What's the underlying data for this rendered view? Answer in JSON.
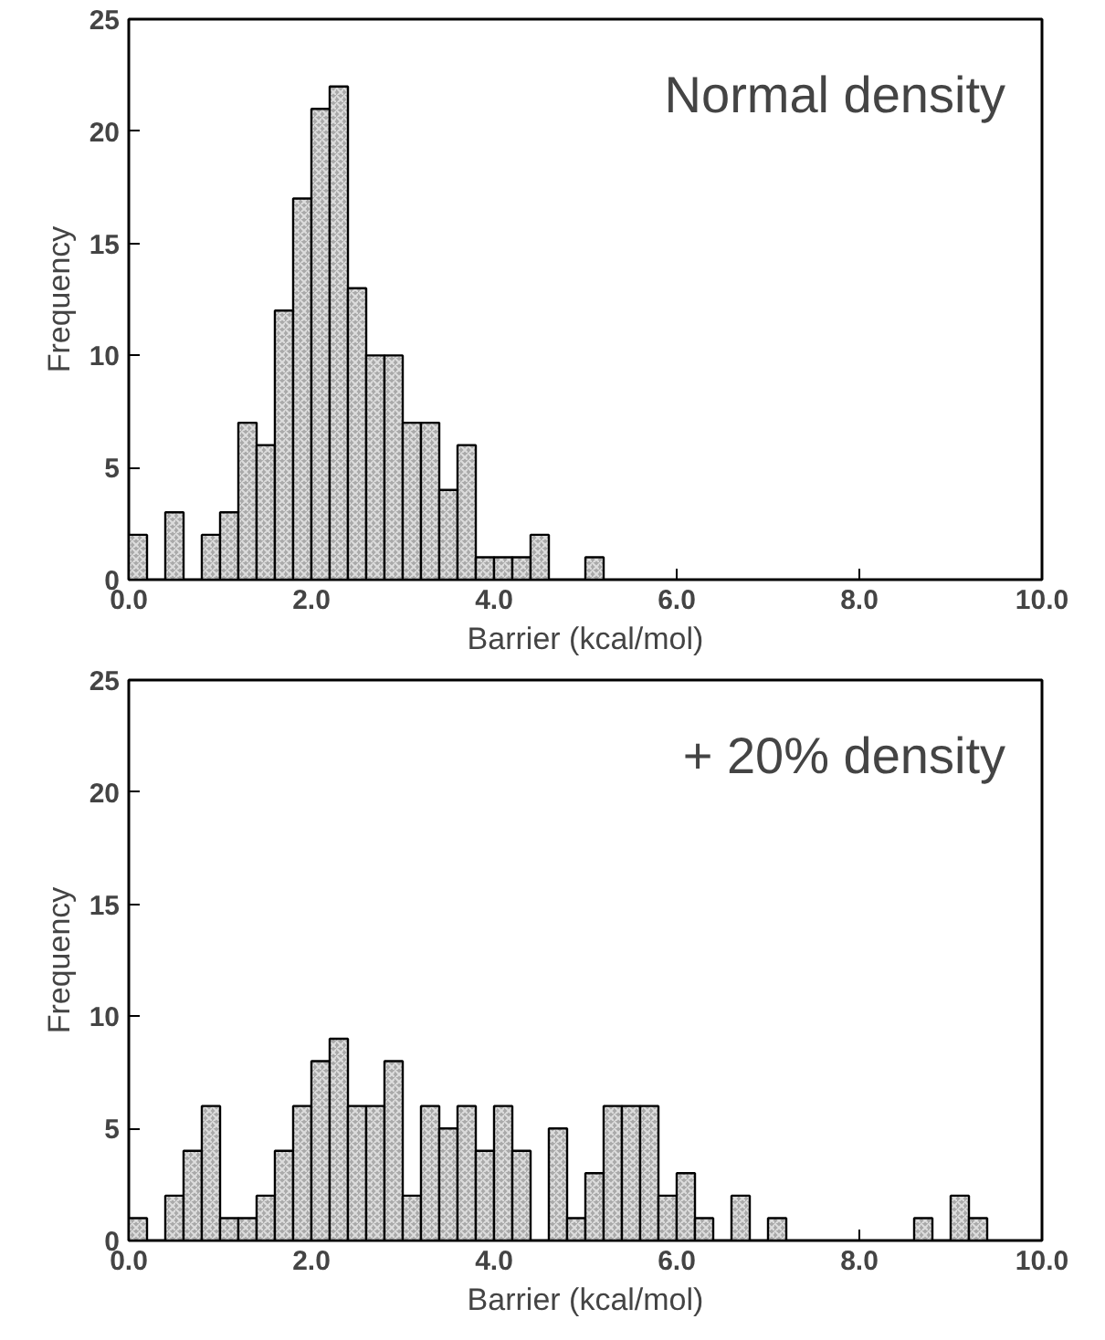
{
  "chart_data": [
    {
      "type": "histogram",
      "xlabel": "Barrier (kcal/mol)",
      "ylabel": "Frequency",
      "annotations": [
        "Normal density"
      ],
      "color": "#a9a9a9",
      "grid": false,
      "bins": [
        0,
        0.2,
        0.4,
        0.6,
        0.8,
        1.0,
        1.2,
        1.4,
        1.6,
        1.8,
        2.0,
        2.2,
        2.4,
        2.6,
        2.8,
        3.0,
        3.2,
        3.4,
        3.6,
        3.8,
        4.0,
        4.2,
        4.4,
        4.6,
        4.8,
        5.0,
        5.2,
        5.4,
        5.6,
        5.8,
        6.0,
        6.2,
        6.4,
        6.6,
        6.8,
        7.0,
        7.2,
        7.4,
        7.6,
        7.8,
        8.0,
        8.2,
        8.4,
        8.6,
        8.8,
        9.0,
        9.2,
        9.4,
        9.6,
        9.8,
        10.0
      ],
      "values": [
        2,
        0,
        3,
        0,
        2,
        3,
        7,
        6,
        12,
        17,
        21,
        22,
        13,
        10,
        10,
        7,
        7,
        4,
        6,
        1,
        1,
        1,
        2,
        0,
        0,
        1,
        0,
        0,
        0,
        0,
        0,
        0,
        0,
        0,
        0,
        0,
        0,
        0,
        0,
        0,
        0,
        0,
        0,
        0,
        0,
        0,
        0,
        0,
        0,
        0
      ],
      "xlim": [
        0,
        10
      ],
      "xticks": [
        {
          "value": 0,
          "label": "0.0"
        },
        {
          "value": 2,
          "label": "2.0"
        },
        {
          "value": 4,
          "label": "4.0"
        },
        {
          "value": 6,
          "label": "6.0"
        },
        {
          "value": 8,
          "label": "8.0"
        },
        {
          "value": 10,
          "label": "10.0"
        }
      ],
      "ylim": [
        0,
        25
      ],
      "yticks": [
        0,
        5,
        10,
        15,
        20,
        25
      ]
    },
    {
      "type": "histogram",
      "xlabel": "Barrier (kcal/mol)",
      "ylabel": "Frequency",
      "annotations": [
        "+ 20% density"
      ],
      "color": "#a9a9a9",
      "grid": false,
      "bins": [
        0,
        0.2,
        0.4,
        0.6,
        0.8,
        1.0,
        1.2,
        1.4,
        1.6,
        1.8,
        2.0,
        2.2,
        2.4,
        2.6,
        2.8,
        3.0,
        3.2,
        3.4,
        3.6,
        3.8,
        4.0,
        4.2,
        4.4,
        4.6,
        4.8,
        5.0,
        5.2,
        5.4,
        5.6,
        5.8,
        6.0,
        6.2,
        6.4,
        6.6,
        6.8,
        7.0,
        7.2,
        7.4,
        7.6,
        7.8,
        8.0,
        8.2,
        8.4,
        8.6,
        8.8,
        9.0,
        9.2,
        9.4,
        9.6,
        9.8,
        10.0
      ],
      "values": [
        1,
        0,
        2,
        4,
        6,
        1,
        1,
        2,
        4,
        6,
        8,
        9,
        6,
        6,
        8,
        2,
        6,
        5,
        6,
        4,
        6,
        4,
        0,
        5,
        1,
        3,
        6,
        6,
        6,
        2,
        3,
        1,
        0,
        2,
        0,
        1,
        0,
        0,
        0,
        0,
        0,
        0,
        0,
        1,
        0,
        2,
        1,
        0,
        0,
        0
      ],
      "xlim": [
        0,
        10
      ],
      "xticks": [
        {
          "value": 0,
          "label": "0.0"
        },
        {
          "value": 2,
          "label": "2.0"
        },
        {
          "value": 4,
          "label": "4.0"
        },
        {
          "value": 6,
          "label": "6.0"
        },
        {
          "value": 8,
          "label": "8.0"
        },
        {
          "value": 10,
          "label": "10.0"
        }
      ],
      "ylim": [
        0,
        25
      ],
      "yticks": [
        0,
        5,
        10,
        15,
        20,
        25
      ]
    }
  ]
}
